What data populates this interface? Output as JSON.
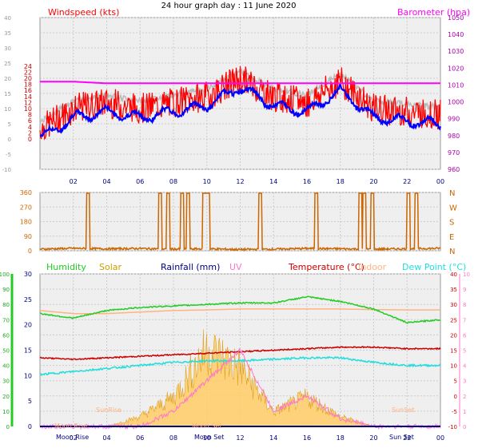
{
  "title": "24 hour graph day : 11 June 2020",
  "colors": {
    "wind": "#ff0000",
    "windDir": "#cc6600",
    "gust": "#0000ff",
    "baro": "#ff00ff",
    "humidity": "#22cc22",
    "solar": "#c8a000",
    "rain": "#000080",
    "uv": "#ff77cc",
    "temp": "#cc0000",
    "indoor": "#ffb380",
    "dew": "#22dddd",
    "grid": "#cccccc",
    "plotbg": "#efefef"
  },
  "x_ticks": [
    "02",
    "04",
    "06",
    "08",
    "10",
    "12",
    "14",
    "16",
    "18",
    "20",
    "22",
    "00"
  ],
  "panels": [
    {
      "id": "wind",
      "left_label": "Windspeed (kts)",
      "right_label": "Barometer (hpa)",
      "y_left_ticks": [
        "-10",
        "-5",
        "0",
        "5",
        "10",
        "15",
        "20",
        "25",
        "30",
        "35",
        "40"
      ],
      "y_left_inner_ticks": [
        "0",
        "2",
        "4",
        "6",
        "8",
        "10",
        "12",
        "14",
        "16",
        "18",
        "20",
        "22",
        "24"
      ],
      "y_right_ticks": [
        "960",
        "970",
        "980",
        "990",
        "1000",
        "1010",
        "1020",
        "1030",
        "1040",
        "1050"
      ]
    },
    {
      "id": "direction",
      "y_left_ticks": [
        "0",
        "90",
        "180",
        "270",
        "360"
      ],
      "y_right_ticks": [
        "N",
        "E",
        "S",
        "W",
        "N"
      ]
    },
    {
      "id": "weather",
      "legend": [
        "Humidity",
        "Solar",
        "Rainfall (mm)",
        "UV",
        "Temperature (°C)",
        "Indoor",
        "Dew Point (°C)"
      ],
      "y_far_left_ticks": [
        "0",
        "10",
        "20",
        "30",
        "40",
        "50",
        "60",
        "70",
        "80",
        "90",
        "100"
      ],
      "y_left_ticks": [
        "0",
        "5",
        "10",
        "15",
        "20",
        "25",
        "30"
      ],
      "y_right_ticks": [
        "-10",
        "-5",
        "0",
        "5",
        "10",
        "15",
        "20",
        "25",
        "30",
        "35",
        "40"
      ],
      "y_far_right_ticks": [
        "0",
        "1",
        "2",
        "3",
        "4",
        "5",
        "6",
        "7",
        "8",
        "9",
        "10"
      ],
      "annotations": [
        "Moon Rise",
        "SunRise",
        "Moon Set",
        "SunSet",
        "Sun Set"
      ]
    }
  ],
  "chart_data": [
    {
      "type": "line",
      "title": "24 hour graph day : 11 June 2020",
      "x": [
        "00",
        "02",
        "04",
        "06",
        "08",
        "10",
        "12",
        "14",
        "16",
        "18",
        "20",
        "22",
        "00"
      ],
      "ylabel": "Windspeed (kts)",
      "y2label": "Barometer (hpa)",
      "ylim": [
        -10,
        40
      ],
      "y2lim": [
        960,
        1050
      ],
      "series": [
        {
          "name": "Windspeed (kts)",
          "axis": "left",
          "values": [
            7,
            14,
            16,
            14,
            16,
            18,
            24,
            18,
            16,
            23,
            14,
            13,
            12
          ]
        },
        {
          "name": "Barometer (hpa)",
          "axis": "right",
          "values": [
            1012,
            1012,
            1011,
            1011,
            1011,
            1011,
            1011,
            1011,
            1011,
            1011,
            1011,
            1011,
            1011
          ]
        }
      ]
    },
    {
      "type": "line",
      "x": [
        "00",
        "02",
        "04",
        "06",
        "08",
        "10",
        "12",
        "14",
        "16",
        "18",
        "20",
        "22",
        "00"
      ],
      "ylim": [
        0,
        360
      ],
      "y_tick_labels": [
        "0",
        "90",
        "180",
        "270",
        "360"
      ],
      "y2_tick_labels": [
        "N",
        "E",
        "S",
        "W",
        "N"
      ],
      "series": [
        {
          "values": [
            10,
            15,
            12,
            14,
            10,
            12,
            8,
            10,
            14,
            12,
            10,
            12,
            15
          ]
        }
      ]
    },
    {
      "type": "line",
      "x": [
        "00",
        "02",
        "04",
        "06",
        "08",
        "10",
        "12",
        "14",
        "16",
        "18",
        "20",
        "22",
        "00"
      ],
      "series": [
        {
          "name": "Humidity",
          "axis": "humidity",
          "ylim": [
            0,
            100
          ],
          "values": [
            74,
            71,
            76,
            78,
            79,
            80,
            81,
            81,
            85,
            82,
            77,
            68,
            70
          ]
        },
        {
          "name": "Solar",
          "axis": "left",
          "ylim": [
            0,
            30
          ],
          "values": [
            0,
            0,
            0,
            2,
            6,
            16,
            12,
            3,
            6,
            2,
            0,
            0,
            0
          ]
        },
        {
          "name": "Rainfall (mm)",
          "axis": "left",
          "ylim": [
            0,
            30
          ],
          "values": [
            0,
            0,
            0,
            0,
            0,
            0,
            0,
            0,
            0,
            0,
            0,
            0,
            0
          ]
        },
        {
          "name": "UV",
          "axis": "uv",
          "ylim": [
            0,
            10
          ],
          "values": [
            0,
            0,
            0,
            0,
            1,
            3,
            5,
            1,
            2,
            0.5,
            0,
            0,
            0
          ]
        },
        {
          "name": "Temperature (°C)",
          "axis": "right",
          "ylim": [
            -10,
            40
          ],
          "values": [
            12.5,
            12,
            12.5,
            13,
            13.5,
            14,
            14.5,
            15,
            15.5,
            16,
            16,
            15.5,
            15.5
          ]
        },
        {
          "name": "Indoor",
          "axis": "right",
          "ylim": [
            -10,
            40
          ],
          "values": [
            28,
            27,
            27,
            27.5,
            28,
            28.2,
            28.5,
            28.5,
            28.5,
            28.5,
            28.3,
            28.2,
            28.2
          ]
        },
        {
          "name": "Dew Point (°C)",
          "axis": "right",
          "ylim": [
            -10,
            40
          ],
          "values": [
            7,
            8,
            9,
            10,
            11,
            11.5,
            11.5,
            12,
            12.5,
            12.5,
            11,
            10,
            10
          ]
        }
      ]
    }
  ]
}
